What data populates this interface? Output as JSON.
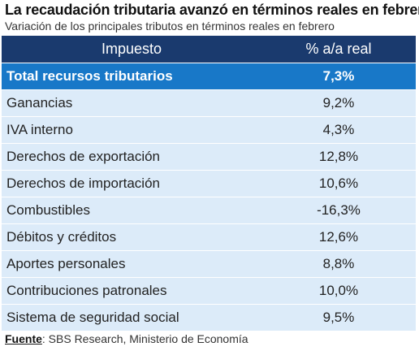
{
  "title": "La recaudación tributaria avanzó en términos reales en febrero",
  "subtitle": "Variación de los principales tributos en términos reales en febrero",
  "table": {
    "headers": [
      "Impuesto",
      "% a/a real"
    ],
    "total": {
      "name": "Total recursos tributarios",
      "value": "7,3%"
    },
    "rows": [
      {
        "name": "Ganancias",
        "value": "9,2%"
      },
      {
        "name": "IVA interno",
        "value": "4,3%"
      },
      {
        "name": "Derechos de exportación",
        "value": "12,8%"
      },
      {
        "name": "Derechos de importación",
        "value": "10,6%"
      },
      {
        "name": "Combustibles",
        "value": "-16,3%"
      },
      {
        "name": "Débitos y créditos",
        "value": "12,6%"
      },
      {
        "name": "Aportes personales",
        "value": "8,8%"
      },
      {
        "name": "Contribuciones patronales",
        "value": "10,0%"
      },
      {
        "name": "Sistema de seguridad social",
        "value": "9,5%"
      }
    ]
  },
  "source": {
    "label": "Fuente",
    "text": ": SBS Research, Ministerio de Economía"
  },
  "colors": {
    "header": "#1a3a6e",
    "total_row": "#1878c8",
    "row": "#dcebf9"
  }
}
